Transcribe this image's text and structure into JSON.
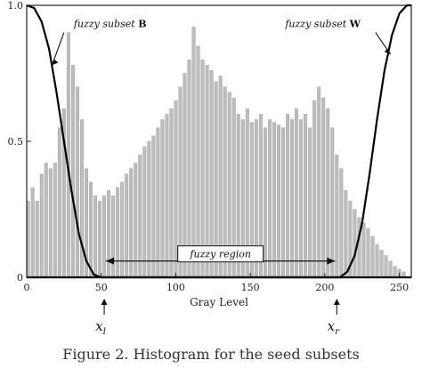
{
  "chart_data": {
    "type": "bar",
    "title": "",
    "xlabel": "Gray Level",
    "ylabel": "",
    "xlim": [
      0,
      258
    ],
    "ylim": [
      0,
      1.0
    ],
    "x_ticks": [
      0,
      50,
      100,
      150,
      200,
      250
    ],
    "y_ticks": [
      0,
      0.5,
      1.0
    ],
    "y_tick_labels": [
      "0",
      "0.5",
      "1.0"
    ],
    "grid": false,
    "legend": "none",
    "bar_color": "#bdbdbd",
    "curve_color": "#000000",
    "histogram": {
      "x_start": 1,
      "x_step": 3,
      "values": [
        0.28,
        0.33,
        0.28,
        0.38,
        0.42,
        0.4,
        0.42,
        0.55,
        0.62,
        0.9,
        0.78,
        0.7,
        0.58,
        0.4,
        0.35,
        0.3,
        0.28,
        0.3,
        0.32,
        0.3,
        0.33,
        0.35,
        0.38,
        0.4,
        0.42,
        0.45,
        0.48,
        0.5,
        0.52,
        0.55,
        0.58,
        0.6,
        0.62,
        0.65,
        0.7,
        0.75,
        0.8,
        0.92,
        0.85,
        0.8,
        0.78,
        0.76,
        0.72,
        0.74,
        0.7,
        0.68,
        0.66,
        0.6,
        0.58,
        0.62,
        0.57,
        0.58,
        0.6,
        0.55,
        0.58,
        0.57,
        0.56,
        0.55,
        0.6,
        0.58,
        0.62,
        0.58,
        0.6,
        0.55,
        0.65,
        0.7,
        0.66,
        0.62,
        0.55,
        0.45,
        0.4,
        0.32,
        0.28,
        0.25,
        0.22,
        0.2,
        0.18,
        0.15,
        0.12,
        0.1,
        0.08,
        0.06,
        0.04,
        0.03,
        0.02
      ]
    },
    "series": [
      {
        "name": "fuzzy subset B",
        "x": [
          0,
          5,
          10,
          15,
          20,
          25,
          30,
          35,
          40,
          45,
          50,
          55,
          60,
          258
        ],
        "y": [
          1.0,
          0.99,
          0.94,
          0.84,
          0.68,
          0.5,
          0.32,
          0.16,
          0.06,
          0.01,
          0.0,
          0.0,
          0.0,
          0.0
        ]
      },
      {
        "name": "fuzzy subset W",
        "x": [
          0,
          205,
          210,
          215,
          220,
          225,
          230,
          235,
          240,
          245,
          250,
          255,
          258
        ],
        "y": [
          0.0,
          0.0,
          0.0,
          0.02,
          0.08,
          0.2,
          0.38,
          0.58,
          0.76,
          0.89,
          0.97,
          1.0,
          1.0
        ]
      }
    ],
    "annotations": [
      {
        "text": "fuzzy subset ",
        "bold_suffix": "B",
        "x": 28,
        "y": 0.92
      },
      {
        "text": "fuzzy subset ",
        "bold_suffix": "W",
        "x": 218,
        "y": 0.92
      },
      {
        "text": "fuzzy region",
        "x": 130,
        "y": 0.06,
        "arrow_from": 52,
        "arrow_to": 208
      }
    ],
    "markers": [
      {
        "label": "x",
        "subscript": "l",
        "x": 52
      },
      {
        "label": "x",
        "subscript": "r",
        "x": 208
      }
    ]
  },
  "caption": "Figure 2. Histogram for the seed subsets"
}
